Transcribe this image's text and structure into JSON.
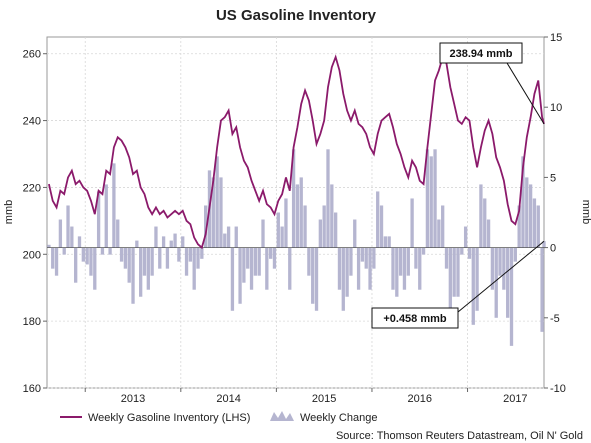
{
  "chart_data": {
    "type": "line",
    "title": "US Gasoline Inventory",
    "source": "Source: Thomson Reuters Datastream, Oil N' Gold",
    "left_axis": {
      "label": "mmb",
      "range": [
        160,
        265
      ],
      "ticks": [
        "160",
        "180",
        "200",
        "220",
        "240",
        "260"
      ]
    },
    "right_axis": {
      "label": "mmb",
      "range": [
        -10,
        15
      ],
      "ticks": [
        "-10",
        "-5",
        "0",
        "5",
        "10",
        "15"
      ]
    },
    "x_axis": {
      "range": [
        2012.6,
        2017.8
      ],
      "ticks": [
        "2013",
        "2014",
        "2015",
        "2016",
        "2017"
      ]
    },
    "grid": true,
    "legend_position": "bottom-left",
    "annotations": [
      {
        "text": "238.94 mmb",
        "series": "Weekly Gasoline Inventory (LHS)",
        "x": 2017.8,
        "y": 238.94
      },
      {
        "text": "+0.458 mmb",
        "series": "Weekly Change",
        "x": 2017.8,
        "y": 0.458
      }
    ],
    "series": [
      {
        "name": "Weekly Gasoline Inventory (LHS)",
        "axis": "left",
        "color": "#8b1a6b",
        "points": [
          [
            2012.62,
            221
          ],
          [
            2012.66,
            216
          ],
          [
            2012.7,
            214
          ],
          [
            2012.74,
            219
          ],
          [
            2012.78,
            218
          ],
          [
            2012.82,
            223
          ],
          [
            2012.86,
            225
          ],
          [
            2012.9,
            221
          ],
          [
            2012.94,
            222
          ],
          [
            2012.98,
            220
          ],
          [
            2013.02,
            219
          ],
          [
            2013.06,
            216
          ],
          [
            2013.1,
            212
          ],
          [
            2013.14,
            219
          ],
          [
            2013.18,
            218
          ],
          [
            2013.22,
            225
          ],
          [
            2013.26,
            224
          ],
          [
            2013.3,
            232
          ],
          [
            2013.34,
            235
          ],
          [
            2013.38,
            234
          ],
          [
            2013.42,
            232
          ],
          [
            2013.46,
            229
          ],
          [
            2013.5,
            224
          ],
          [
            2013.54,
            225
          ],
          [
            2013.58,
            220
          ],
          [
            2013.62,
            218
          ],
          [
            2013.66,
            214
          ],
          [
            2013.7,
            212
          ],
          [
            2013.74,
            214
          ],
          [
            2013.78,
            212
          ],
          [
            2013.82,
            213
          ],
          [
            2013.86,
            211
          ],
          [
            2013.9,
            212
          ],
          [
            2013.94,
            213
          ],
          [
            2013.98,
            212
          ],
          [
            2014.02,
            213
          ],
          [
            2014.06,
            210
          ],
          [
            2014.1,
            209
          ],
          [
            2014.14,
            205
          ],
          [
            2014.18,
            203
          ],
          [
            2014.22,
            202
          ],
          [
            2014.26,
            206
          ],
          [
            2014.3,
            214
          ],
          [
            2014.34,
            222
          ],
          [
            2014.38,
            232
          ],
          [
            2014.42,
            240
          ],
          [
            2014.46,
            241
          ],
          [
            2014.5,
            243
          ],
          [
            2014.54,
            236
          ],
          [
            2014.58,
            238
          ],
          [
            2014.62,
            232
          ],
          [
            2014.66,
            228
          ],
          [
            2014.7,
            226
          ],
          [
            2014.74,
            222
          ],
          [
            2014.78,
            219
          ],
          [
            2014.82,
            216
          ],
          [
            2014.86,
            219
          ],
          [
            2014.9,
            215
          ],
          [
            2014.94,
            214
          ],
          [
            2014.98,
            212
          ],
          [
            2015.02,
            216
          ],
          [
            2015.06,
            218
          ],
          [
            2015.1,
            223
          ],
          [
            2015.14,
            219
          ],
          [
            2015.18,
            232
          ],
          [
            2015.22,
            238
          ],
          [
            2015.26,
            245
          ],
          [
            2015.3,
            249
          ],
          [
            2015.34,
            246
          ],
          [
            2015.38,
            240
          ],
          [
            2015.42,
            233
          ],
          [
            2015.46,
            236
          ],
          [
            2015.5,
            240
          ],
          [
            2015.54,
            250
          ],
          [
            2015.58,
            256
          ],
          [
            2015.62,
            259
          ],
          [
            2015.66,
            255
          ],
          [
            2015.7,
            248
          ],
          [
            2015.74,
            243
          ],
          [
            2015.78,
            240
          ],
          [
            2015.82,
            243
          ],
          [
            2015.86,
            239
          ],
          [
            2015.9,
            238
          ],
          [
            2015.94,
            236
          ],
          [
            2015.98,
            232
          ],
          [
            2016.02,
            230
          ],
          [
            2016.06,
            236
          ],
          [
            2016.1,
            240
          ],
          [
            2016.14,
            241
          ],
          [
            2016.18,
            242
          ],
          [
            2016.22,
            238
          ],
          [
            2016.26,
            233
          ],
          [
            2016.3,
            230
          ],
          [
            2016.34,
            226
          ],
          [
            2016.38,
            223
          ],
          [
            2016.42,
            228
          ],
          [
            2016.46,
            226
          ],
          [
            2016.5,
            222
          ],
          [
            2016.54,
            221
          ],
          [
            2016.58,
            232
          ],
          [
            2016.62,
            242
          ],
          [
            2016.66,
            252
          ],
          [
            2016.7,
            255
          ],
          [
            2016.74,
            259
          ],
          [
            2016.78,
            257
          ],
          [
            2016.82,
            250
          ],
          [
            2016.86,
            245
          ],
          [
            2016.9,
            240
          ],
          [
            2016.94,
            239
          ],
          [
            2016.98,
            241
          ],
          [
            2017.02,
            240
          ],
          [
            2017.06,
            232
          ],
          [
            2017.1,
            226
          ],
          [
            2017.14,
            232
          ],
          [
            2017.18,
            237
          ],
          [
            2017.22,
            240
          ],
          [
            2017.26,
            236
          ],
          [
            2017.3,
            229
          ],
          [
            2017.34,
            226
          ],
          [
            2017.38,
            222
          ],
          [
            2017.42,
            215
          ],
          [
            2017.46,
            210
          ],
          [
            2017.5,
            209
          ],
          [
            2017.54,
            213
          ],
          [
            2017.58,
            226
          ],
          [
            2017.62,
            235
          ],
          [
            2017.66,
            241
          ],
          [
            2017.7,
            248
          ],
          [
            2017.74,
            252
          ],
          [
            2017.78,
            241
          ],
          [
            2017.8,
            239
          ]
        ]
      },
      {
        "name": "Weekly Change",
        "axis": "right",
        "color": "#b5b5d0",
        "points": [
          [
            2012.62,
            0.2
          ],
          [
            2012.66,
            -1.5
          ],
          [
            2012.7,
            -2.0
          ],
          [
            2012.74,
            2.0
          ],
          [
            2012.78,
            -0.5
          ],
          [
            2012.82,
            3.0
          ],
          [
            2012.86,
            1.5
          ],
          [
            2012.9,
            -2.5
          ],
          [
            2012.94,
            0.8
          ],
          [
            2012.98,
            -1.0
          ],
          [
            2013.02,
            -1.2
          ],
          [
            2013.06,
            -2.0
          ],
          [
            2013.1,
            -3.0
          ],
          [
            2013.14,
            4.0
          ],
          [
            2013.18,
            -0.5
          ],
          [
            2013.22,
            4.5
          ],
          [
            2013.26,
            -0.5
          ],
          [
            2013.3,
            6.0
          ],
          [
            2013.34,
            2.0
          ],
          [
            2013.38,
            -1.0
          ],
          [
            2013.42,
            -1.5
          ],
          [
            2013.46,
            -2.5
          ],
          [
            2013.5,
            -4.0
          ],
          [
            2013.54,
            0.5
          ],
          [
            2013.58,
            -3.5
          ],
          [
            2013.62,
            -2.0
          ],
          [
            2013.66,
            -3.0
          ],
          [
            2013.7,
            -2.0
          ],
          [
            2013.74,
            1.5
          ],
          [
            2013.78,
            -1.5
          ],
          [
            2013.82,
            0.8
          ],
          [
            2013.86,
            -1.5
          ],
          [
            2013.9,
            0.5
          ],
          [
            2013.94,
            1.0
          ],
          [
            2013.98,
            -1.0
          ],
          [
            2014.02,
            0.8
          ],
          [
            2014.06,
            -2.0
          ],
          [
            2014.1,
            -1.0
          ],
          [
            2014.14,
            -3.0
          ],
          [
            2014.18,
            -1.5
          ],
          [
            2014.22,
            -0.8
          ],
          [
            2014.26,
            3.0
          ],
          [
            2014.3,
            5.5
          ],
          [
            2014.34,
            5.0
          ],
          [
            2014.38,
            6.5
          ],
          [
            2014.42,
            5.0
          ],
          [
            2014.46,
            1.0
          ],
          [
            2014.5,
            1.5
          ],
          [
            2014.54,
            -4.5
          ],
          [
            2014.58,
            1.5
          ],
          [
            2014.62,
            -4.0
          ],
          [
            2014.66,
            -2.5
          ],
          [
            2014.7,
            -1.5
          ],
          [
            2014.74,
            -3.0
          ],
          [
            2014.78,
            -2.0
          ],
          [
            2014.82,
            -2.0
          ],
          [
            2014.86,
            2.0
          ],
          [
            2014.9,
            -3.0
          ],
          [
            2014.94,
            -0.8
          ],
          [
            2014.98,
            -1.5
          ],
          [
            2015.02,
            2.5
          ],
          [
            2015.06,
            1.5
          ],
          [
            2015.1,
            3.5
          ],
          [
            2015.14,
            -3.0
          ],
          [
            2015.18,
            7.0
          ],
          [
            2015.22,
            4.5
          ],
          [
            2015.26,
            5.0
          ],
          [
            2015.3,
            3.0
          ],
          [
            2015.34,
            -2.0
          ],
          [
            2015.38,
            -4.0
          ],
          [
            2015.42,
            -4.5
          ],
          [
            2015.46,
            2.0
          ],
          [
            2015.5,
            3.0
          ],
          [
            2015.54,
            7.0
          ],
          [
            2015.58,
            4.5
          ],
          [
            2015.62,
            2.5
          ],
          [
            2015.66,
            -3.0
          ],
          [
            2015.7,
            -4.5
          ],
          [
            2015.74,
            -3.5
          ],
          [
            2015.78,
            -2.0
          ],
          [
            2015.82,
            2.0
          ],
          [
            2015.86,
            -3.0
          ],
          [
            2015.9,
            -1.0
          ],
          [
            2015.94,
            -1.5
          ],
          [
            2015.98,
            -3.0
          ],
          [
            2016.02,
            -1.5
          ],
          [
            2016.06,
            4.0
          ],
          [
            2016.1,
            3.0
          ],
          [
            2016.14,
            0.8
          ],
          [
            2016.18,
            0.8
          ],
          [
            2016.22,
            -3.0
          ],
          [
            2016.26,
            -3.5
          ],
          [
            2016.3,
            -2.0
          ],
          [
            2016.34,
            -3.0
          ],
          [
            2016.38,
            -2.0
          ],
          [
            2016.42,
            3.5
          ],
          [
            2016.46,
            -1.5
          ],
          [
            2016.5,
            -3.0
          ],
          [
            2016.54,
            -0.5
          ],
          [
            2016.58,
            7.0
          ],
          [
            2016.62,
            6.5
          ],
          [
            2016.66,
            7.0
          ],
          [
            2016.7,
            2.0
          ],
          [
            2016.74,
            3.0
          ],
          [
            2016.78,
            -1.5
          ],
          [
            2016.82,
            -5.0
          ],
          [
            2016.86,
            -3.5
          ],
          [
            2016.9,
            -3.5
          ],
          [
            2016.94,
            -0.5
          ],
          [
            2016.98,
            1.5
          ],
          [
            2017.02,
            -0.8
          ],
          [
            2017.06,
            -5.5
          ],
          [
            2017.1,
            -4.5
          ],
          [
            2017.14,
            4.5
          ],
          [
            2017.18,
            3.5
          ],
          [
            2017.22,
            2.0
          ],
          [
            2017.26,
            -3.0
          ],
          [
            2017.3,
            -5.0
          ],
          [
            2017.34,
            -2.0
          ],
          [
            2017.38,
            -3.0
          ],
          [
            2017.42,
            -5.0
          ],
          [
            2017.46,
            -7.0
          ],
          [
            2017.5,
            -1.0
          ],
          [
            2017.54,
            3.0
          ],
          [
            2017.58,
            6.5
          ],
          [
            2017.62,
            5.0
          ],
          [
            2017.66,
            4.5
          ],
          [
            2017.7,
            3.5
          ],
          [
            2017.74,
            3.0
          ],
          [
            2017.78,
            -6.0
          ],
          [
            2017.8,
            0.458
          ]
        ]
      }
    ]
  }
}
